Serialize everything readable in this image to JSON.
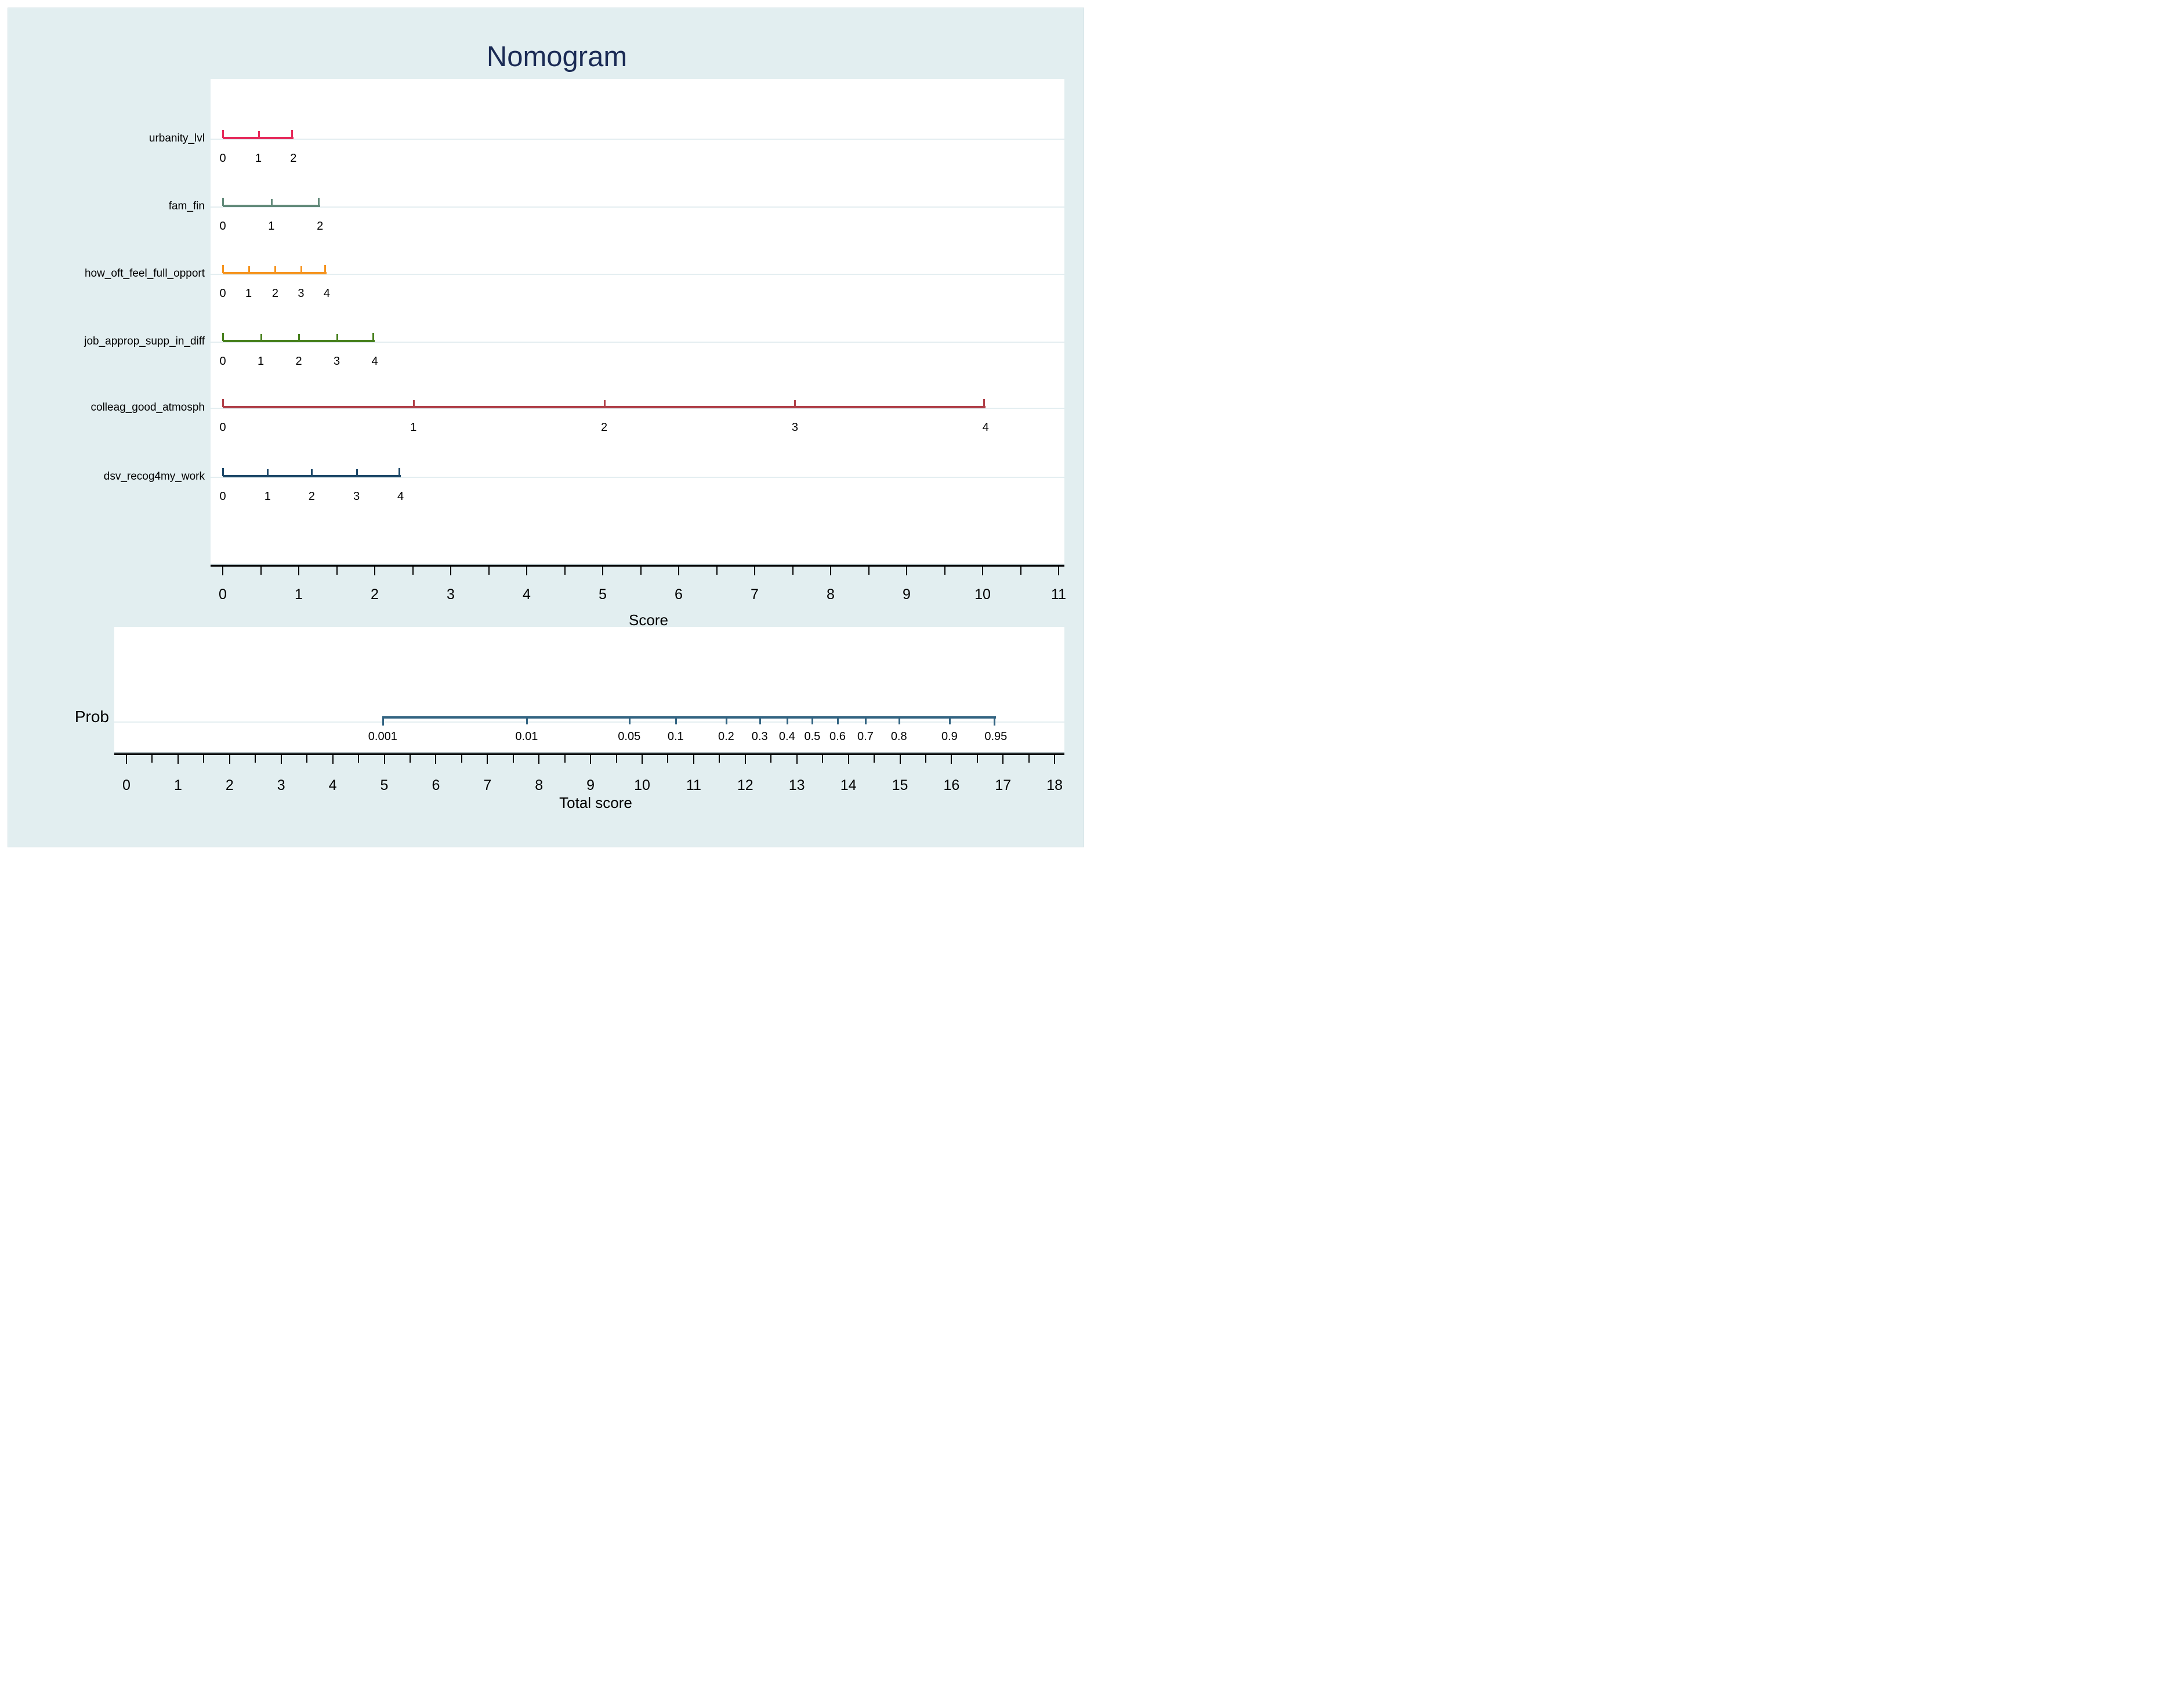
{
  "title": "Nomogram",
  "chart_data": {
    "type": "nomogram",
    "title": "Nomogram",
    "score_axis": {
      "label": "Score",
      "min": 0,
      "max": 11,
      "major_step": 1,
      "minor_step": 0.5
    },
    "variables": [
      {
        "name": "urbanity_lvl",
        "color": "#e62a5b",
        "points": [
          {
            "label": "0",
            "score": 0
          },
          {
            "label": "1",
            "score": 0.47
          },
          {
            "label": "2",
            "score": 0.93
          }
        ]
      },
      {
        "name": "fam_fin",
        "color": "#628a7a",
        "points": [
          {
            "label": "0",
            "score": 0
          },
          {
            "label": "1",
            "score": 0.64
          },
          {
            "label": "2",
            "score": 1.28
          }
        ]
      },
      {
        "name": "how_oft_feel_full_opport",
        "color": "#f6941f",
        "points": [
          {
            "label": "0",
            "score": 0
          },
          {
            "label": "1",
            "score": 0.34
          },
          {
            "label": "2",
            "score": 0.69
          },
          {
            "label": "3",
            "score": 1.03
          },
          {
            "label": "4",
            "score": 1.37
          }
        ]
      },
      {
        "name": "job_approp_supp_in_diff",
        "color": "#47801d",
        "points": [
          {
            "label": "0",
            "score": 0
          },
          {
            "label": "1",
            "score": 0.5
          },
          {
            "label": "2",
            "score": 1.0
          },
          {
            "label": "3",
            "score": 1.5
          },
          {
            "label": "4",
            "score": 2.0
          }
        ]
      },
      {
        "name": "colleag_good_atmosph",
        "color": "#b04049",
        "points": [
          {
            "label": "0",
            "score": 0
          },
          {
            "label": "1",
            "score": 2.51
          },
          {
            "label": "2",
            "score": 5.02
          },
          {
            "label": "3",
            "score": 7.53
          },
          {
            "label": "4",
            "score": 10.04
          }
        ]
      },
      {
        "name": "dsv_recog4my_work",
        "color": "#1d4868",
        "points": [
          {
            "label": "0",
            "score": 0
          },
          {
            "label": "1",
            "score": 0.59
          },
          {
            "label": "2",
            "score": 1.17
          },
          {
            "label": "3",
            "score": 1.76
          },
          {
            "label": "4",
            "score": 2.34
          }
        ]
      }
    ],
    "probability_axis": {
      "row_label": "Prob",
      "color": "#336482",
      "ticks": [
        {
          "label": "0.001",
          "total_score": 4.97
        },
        {
          "label": "0.01",
          "total_score": 7.76
        },
        {
          "label": "0.05",
          "total_score": 9.75
        },
        {
          "label": "0.1",
          "total_score": 10.65
        },
        {
          "label": "0.2",
          "total_score": 11.63
        },
        {
          "label": "0.3",
          "total_score": 12.28
        },
        {
          "label": "0.4",
          "total_score": 12.81
        },
        {
          "label": "0.5",
          "total_score": 13.3
        },
        {
          "label": "0.6",
          "total_score": 13.79
        },
        {
          "label": "0.7",
          "total_score": 14.33
        },
        {
          "label": "0.8",
          "total_score": 14.98
        },
        {
          "label": "0.9",
          "total_score": 15.96
        },
        {
          "label": "0.95",
          "total_score": 16.86
        }
      ]
    },
    "total_axis": {
      "label": "Total score",
      "min": 0,
      "max": 18,
      "major_step": 1,
      "minor_step": 0.5
    }
  },
  "colors": {
    "background": "#e2eef0",
    "panel": "#ffffff",
    "gridline": "#e4eef1",
    "title_text": "#1b2b55",
    "axis_text": "#000000"
  }
}
